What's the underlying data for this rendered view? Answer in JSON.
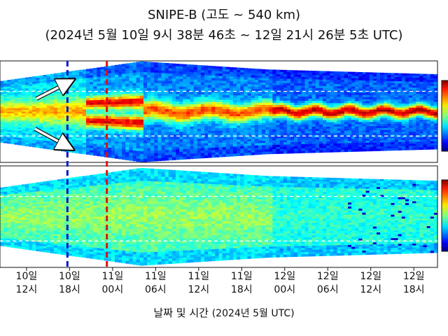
{
  "header": {
    "title": "SNIPE-B (고도 ~ 540 km)",
    "subtitle": "(2024년 5월 10일 9시 38분 46초 ~ 12일 21시 26분 5초 UTC)"
  },
  "chart_data": {
    "type": "heatmap",
    "title": "SNIPE-B (고도 ~ 540 km)",
    "subtitle": "(2024년 5월 10일 9시 38분 46초 ~ 12일 21시 26분 5초 UTC)",
    "xlabel_main": "날짜 및 시간",
    "xlabel_paren": "(2024년 5월 UTC)",
    "x_unit": "hours since 2024-05-10 00:00 UTC",
    "xlim": [
      8.3,
      69.3
    ],
    "ticks": [
      {
        "hour": 12,
        "top": "10일",
        "bottom": "12시"
      },
      {
        "hour": 18,
        "top": "10일",
        "bottom": "18시"
      },
      {
        "hour": 24,
        "top": "11일",
        "bottom": "00시"
      },
      {
        "hour": 30,
        "top": "11일",
        "bottom": "06시"
      },
      {
        "hour": 36,
        "top": "11일",
        "bottom": "12시"
      },
      {
        "hour": 42,
        "top": "11일",
        "bottom": "18시"
      },
      {
        "hour": 48,
        "top": "12일",
        "bottom": "00시"
      },
      {
        "hour": 54,
        "top": "12일",
        "bottom": "06시"
      },
      {
        "hour": 60,
        "top": "12일",
        "bottom": "12시"
      },
      {
        "hour": 66,
        "top": "12일",
        "bottom": "18시"
      }
    ],
    "markers": [
      {
        "hour": 17.7,
        "color": "#0a14d4",
        "style": "dashed"
      },
      {
        "hour": 23.2,
        "color": "#e01010",
        "style": "dashed"
      }
    ],
    "colormap": "jet",
    "panels": [
      {
        "name": "upper",
        "colorbar": true
      },
      {
        "name": "lower",
        "colorbar": true
      }
    ]
  }
}
